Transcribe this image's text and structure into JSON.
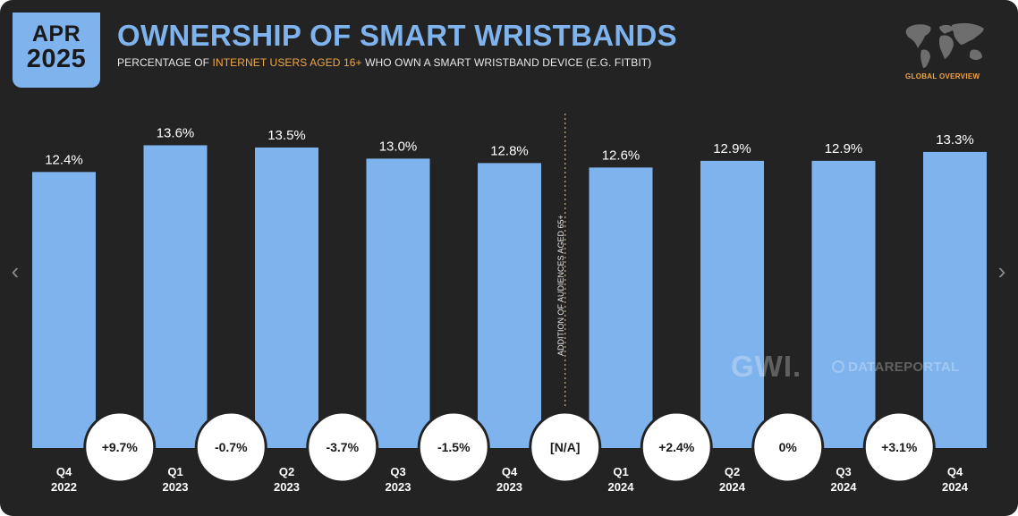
{
  "header": {
    "date_month": "APR",
    "date_year": "2025",
    "title": "OWNERSHIP OF SMART WRISTBANDS",
    "subtitle_pre": "PERCENTAGE OF ",
    "subtitle_highlight": "INTERNET USERS AGED 16+",
    "subtitle_post": " WHO OWN A SMART WRISTBAND DEVICE (E.G. FITBIT)",
    "globe_label": "GLOBAL OVERVIEW",
    "globe_icon": "world-map-icon"
  },
  "watermark": {
    "gwi": "GWI.",
    "datareportal": "DATAREPORTAL"
  },
  "nav": {
    "prev_icon": "chevron-left-icon",
    "next_icon": "chevron-right-icon"
  },
  "colors": {
    "background": "#232323",
    "bar": "#7fb3ee",
    "accent": "#f2a542",
    "bubble": "#ffffff"
  },
  "chart_data": {
    "type": "bar",
    "title": "OWNERSHIP OF SMART WRISTBANDS",
    "categories": [
      [
        "Q4",
        "2022"
      ],
      [
        "Q1",
        "2023"
      ],
      [
        "Q2",
        "2023"
      ],
      [
        "Q3",
        "2023"
      ],
      [
        "Q4",
        "2023"
      ],
      [
        "Q1",
        "2024"
      ],
      [
        "Q2",
        "2024"
      ],
      [
        "Q3",
        "2024"
      ],
      [
        "Q4",
        "2024"
      ]
    ],
    "values": [
      12.4,
      13.6,
      13.5,
      13.0,
      12.8,
      12.6,
      12.9,
      12.9,
      13.3
    ],
    "value_labels": [
      "12.4%",
      "13.6%",
      "13.5%",
      "13.0%",
      "12.8%",
      "12.6%",
      "12.9%",
      "12.9%",
      "13.3%"
    ],
    "changes": [
      "+9.7%",
      "-0.7%",
      "-3.7%",
      "-1.5%",
      "[N/A]",
      "+2.4%",
      "0%",
      "+3.1%"
    ],
    "annotation": {
      "text": "ADDITION OF AUDIENCES AGED 65+",
      "between_categories": [
        4,
        5
      ]
    },
    "grid": false,
    "legend": "none",
    "ylim": [
      0,
      14.1
    ]
  }
}
